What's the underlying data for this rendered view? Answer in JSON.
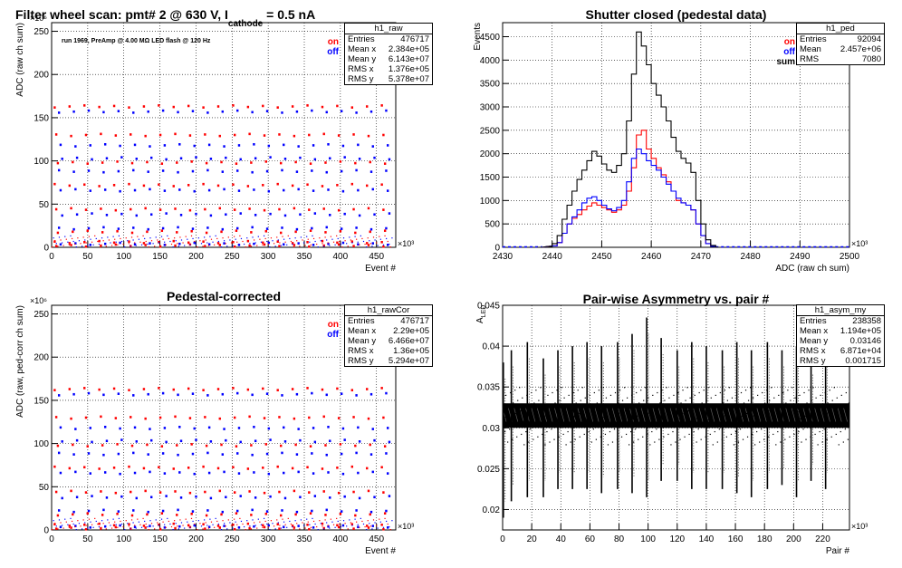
{
  "chart_data": [
    {
      "id": "raw",
      "type": "scatter",
      "title_parts": {
        "main": "Filter wheel scan: pmt#   2 @   630 V, I",
        "sub": "cathode",
        "tail": " = 0.5 nA"
      },
      "annotation": "run 1969, PreAmp @ 4.00 MΩ   LED flash @  120 Hz",
      "xlabel": "Event #",
      "ylabel": "ADC (raw ch sum)",
      "x_exponent": "×10³",
      "y_exponent": "×10⁶",
      "xlim": [
        0,
        476.7
      ],
      "ylim": [
        0,
        260
      ],
      "x_ticks": [
        0,
        50,
        100,
        150,
        200,
        250,
        300,
        350,
        400,
        450
      ],
      "y_ticks": [
        0,
        50,
        100,
        150,
        200,
        250
      ],
      "grid": true,
      "legend": [
        "on",
        "off"
      ],
      "series": [
        {
          "name": "on",
          "color": "#ff0000",
          "pattern_x_start": 4,
          "pattern_period": 20.6,
          "levels": [
            163,
            130,
            98,
            72,
            44,
            18,
            6,
            2
          ]
        },
        {
          "name": "off",
          "color": "#0000ff",
          "pattern_x_start": 10,
          "pattern_period": 20.6,
          "levels": [
            157,
            118,
            103,
            88,
            66,
            38,
            22,
            4
          ]
        }
      ],
      "stats": {
        "title": "h1_raw",
        "rows": [
          [
            "Entries",
            "476717"
          ],
          [
            "Mean x",
            "2.384e+05"
          ],
          [
            "Mean y",
            "6.143e+07"
          ],
          [
            "RMS x",
            "1.376e+05"
          ],
          [
            "RMS y",
            "5.378e+07"
          ]
        ]
      }
    },
    {
      "id": "ped",
      "type": "histogram",
      "title": "Shutter closed (pedestal data)",
      "xlabel": "ADC (raw ch sum)",
      "ylabel": "Events",
      "x_exponent": "×10³",
      "xlim": [
        2430,
        2500
      ],
      "ylim": [
        0,
        4800
      ],
      "x_ticks": [
        2430,
        2440,
        2450,
        2460,
        2470,
        2480,
        2490,
        2500
      ],
      "y_ticks": [
        0,
        500,
        1000,
        1500,
        2000,
        2500,
        3000,
        3500,
        4000,
        4500
      ],
      "grid": true,
      "legend": [
        "on",
        "off",
        "sum"
      ],
      "series": [
        {
          "name": "on",
          "color": "#ff0000",
          "points": [
            [
              2437,
              0
            ],
            [
              2440,
              30
            ],
            [
              2441,
              100
            ],
            [
              2442,
              300
            ],
            [
              2443,
              500
            ],
            [
              2444,
              620
            ],
            [
              2445,
              700
            ],
            [
              2446,
              800
            ],
            [
              2447,
              880
            ],
            [
              2448,
              950
            ],
            [
              2449,
              900
            ],
            [
              2450,
              850
            ],
            [
              2451,
              800
            ],
            [
              2452,
              750
            ],
            [
              2453,
              800
            ],
            [
              2454,
              900
            ],
            [
              2455,
              1200
            ],
            [
              2456,
              1700
            ],
            [
              2457,
              2400
            ],
            [
              2458,
              2500
            ],
            [
              2459,
              2100
            ],
            [
              2460,
              1900
            ],
            [
              2461,
              1700
            ],
            [
              2462,
              1550
            ],
            [
              2463,
              1400
            ],
            [
              2464,
              1200
            ],
            [
              2465,
              1000
            ],
            [
              2466,
              950
            ],
            [
              2467,
              900
            ],
            [
              2468,
              800
            ],
            [
              2469,
              500
            ],
            [
              2470,
              250
            ],
            [
              2471,
              80
            ],
            [
              2472,
              20
            ],
            [
              2473,
              0
            ]
          ]
        },
        {
          "name": "off",
          "color": "#0000ff",
          "points": [
            [
              2437,
              0
            ],
            [
              2440,
              30
            ],
            [
              2441,
              100
            ],
            [
              2442,
              300
            ],
            [
              2443,
              500
            ],
            [
              2444,
              650
            ],
            [
              2445,
              800
            ],
            [
              2446,
              950
            ],
            [
              2447,
              1050
            ],
            [
              2448,
              1080
            ],
            [
              2449,
              1000
            ],
            [
              2450,
              900
            ],
            [
              2451,
              820
            ],
            [
              2452,
              780
            ],
            [
              2453,
              850
            ],
            [
              2454,
              1000
            ],
            [
              2455,
              1400
            ],
            [
              2456,
              1900
            ],
            [
              2457,
              2100
            ],
            [
              2458,
              2000
            ],
            [
              2459,
              1850
            ],
            [
              2460,
              1750
            ],
            [
              2461,
              1650
            ],
            [
              2462,
              1500
            ],
            [
              2463,
              1350
            ],
            [
              2464,
              1200
            ],
            [
              2465,
              1050
            ],
            [
              2466,
              950
            ],
            [
              2467,
              900
            ],
            [
              2468,
              800
            ],
            [
              2469,
              500
            ],
            [
              2470,
              250
            ],
            [
              2471,
              80
            ],
            [
              2472,
              20
            ],
            [
              2473,
              0
            ]
          ]
        },
        {
          "name": "sum",
          "color": "#000000",
          "points": [
            [
              2437,
              0
            ],
            [
              2439,
              20
            ],
            [
              2440,
              80
            ],
            [
              2441,
              250
            ],
            [
              2442,
              600
            ],
            [
              2443,
              900
            ],
            [
              2444,
              1200
            ],
            [
              2445,
              1450
            ],
            [
              2446,
              1650
            ],
            [
              2447,
              1850
            ],
            [
              2448,
              2050
            ],
            [
              2449,
              1950
            ],
            [
              2450,
              1780
            ],
            [
              2451,
              1650
            ],
            [
              2452,
              1600
            ],
            [
              2453,
              1750
            ],
            [
              2454,
              2000
            ],
            [
              2455,
              2700
            ],
            [
              2456,
              3700
            ],
            [
              2457,
              4600
            ],
            [
              2458,
              4300
            ],
            [
              2459,
              3900
            ],
            [
              2460,
              3500
            ],
            [
              2461,
              3250
            ],
            [
              2462,
              3000
            ],
            [
              2463,
              2700
            ],
            [
              2464,
              2350
            ],
            [
              2465,
              2050
            ],
            [
              2466,
              1900
            ],
            [
              2467,
              1800
            ],
            [
              2468,
              1600
            ],
            [
              2469,
              1000
            ],
            [
              2470,
              500
            ],
            [
              2471,
              160
            ],
            [
              2472,
              40
            ],
            [
              2473,
              0
            ]
          ]
        }
      ],
      "stats": {
        "title": "h1_ped",
        "rows": [
          [
            "Entries",
            "92094"
          ],
          [
            "Mean",
            "2.457e+06"
          ],
          [
            "RMS",
            "7080"
          ]
        ]
      }
    },
    {
      "id": "rawCor",
      "type": "scatter",
      "title": "Pedestal-corrected",
      "xlabel": "Event #",
      "ylabel": "ADC (raw, ped-corr ch sum)",
      "x_exponent": "×10³",
      "y_exponent": "×10⁶",
      "xlim": [
        0,
        476.7
      ],
      "ylim": [
        0,
        260
      ],
      "x_ticks": [
        0,
        50,
        100,
        150,
        200,
        250,
        300,
        350,
        400,
        450
      ],
      "y_ticks": [
        0,
        50,
        100,
        150,
        200,
        250
      ],
      "grid": true,
      "legend": [
        "on",
        "off"
      ],
      "series": [
        {
          "name": "on",
          "color": "#ff0000",
          "pattern_x_start": 4,
          "pattern_period": 20.6,
          "levels": [
            163,
            130,
            98,
            72,
            44,
            18,
            6,
            2
          ]
        },
        {
          "name": "off",
          "color": "#0000ff",
          "pattern_x_start": 10,
          "pattern_period": 20.6,
          "levels": [
            157,
            118,
            103,
            88,
            66,
            38,
            22,
            4
          ]
        }
      ],
      "stats": {
        "title": "h1_rawCor",
        "rows": [
          [
            "Entries",
            "476717"
          ],
          [
            "Mean x",
            "2.29e+05"
          ],
          [
            "Mean y",
            "6.466e+07"
          ],
          [
            "RMS x",
            "1.36e+05"
          ],
          [
            "RMS y",
            "5.294e+07"
          ]
        ]
      }
    },
    {
      "id": "asym",
      "type": "scatter",
      "title": "Pair-wise Asymmetry vs. pair #",
      "xlabel": "Pair #",
      "ylabel": "A_LED",
      "ylabel_main": "A",
      "ylabel_sub": "LED",
      "x_exponent": "×10³",
      "xlim": [
        0,
        238.4
      ],
      "ylim": [
        0.0175,
        0.045
      ],
      "x_ticks": [
        0,
        20,
        40,
        60,
        80,
        100,
        120,
        140,
        160,
        180,
        200,
        220
      ],
      "y_ticks": [
        0.02,
        0.025,
        0.03,
        0.035,
        0.04,
        0.045
      ],
      "grid": true,
      "band": {
        "center": 0.0315,
        "halfwidth": 0.0015
      },
      "spikes": [
        {
          "x": 0.5,
          "top": 0.038,
          "bottom": 0.019
        },
        {
          "x": 6,
          "top": 0.0395,
          "bottom": 0.021
        },
        {
          "x": 17,
          "top": 0.0405,
          "bottom": 0.0215
        },
        {
          "x": 28,
          "top": 0.0385,
          "bottom": 0.0215
        },
        {
          "x": 38,
          "top": 0.0395,
          "bottom": 0.0225
        },
        {
          "x": 48,
          "top": 0.04,
          "bottom": 0.0225
        },
        {
          "x": 58,
          "top": 0.0405,
          "bottom": 0.0225
        },
        {
          "x": 68,
          "top": 0.04,
          "bottom": 0.022
        },
        {
          "x": 79,
          "top": 0.0405,
          "bottom": 0.0225
        },
        {
          "x": 89,
          "top": 0.0415,
          "bottom": 0.022
        },
        {
          "x": 99,
          "top": 0.0435,
          "bottom": 0.0215
        },
        {
          "x": 109,
          "top": 0.041,
          "bottom": 0.0235
        },
        {
          "x": 120,
          "top": 0.0395,
          "bottom": 0.0235
        },
        {
          "x": 130,
          "top": 0.0405,
          "bottom": 0.0225
        },
        {
          "x": 140,
          "top": 0.04,
          "bottom": 0.0225
        },
        {
          "x": 151,
          "top": 0.0395,
          "bottom": 0.0225
        },
        {
          "x": 161,
          "top": 0.0405,
          "bottom": 0.022
        },
        {
          "x": 171,
          "top": 0.0395,
          "bottom": 0.0215
        },
        {
          "x": 182,
          "top": 0.0405,
          "bottom": 0.0225
        },
        {
          "x": 192,
          "top": 0.0395,
          "bottom": 0.023
        },
        {
          "x": 202,
          "top": 0.04,
          "bottom": 0.0215
        },
        {
          "x": 212,
          "top": 0.0385,
          "bottom": 0.0235
        },
        {
          "x": 222,
          "top": 0.0395,
          "bottom": 0.0225
        }
      ],
      "stats": {
        "title": "h1_asym_my",
        "rows": [
          [
            "Entries",
            "238358"
          ],
          [
            "Mean x",
            "1.194e+05"
          ],
          [
            "Mean y",
            "0.03146"
          ],
          [
            "RMS x",
            "6.871e+04"
          ],
          [
            "RMS y",
            "0.001715"
          ]
        ]
      }
    }
  ]
}
